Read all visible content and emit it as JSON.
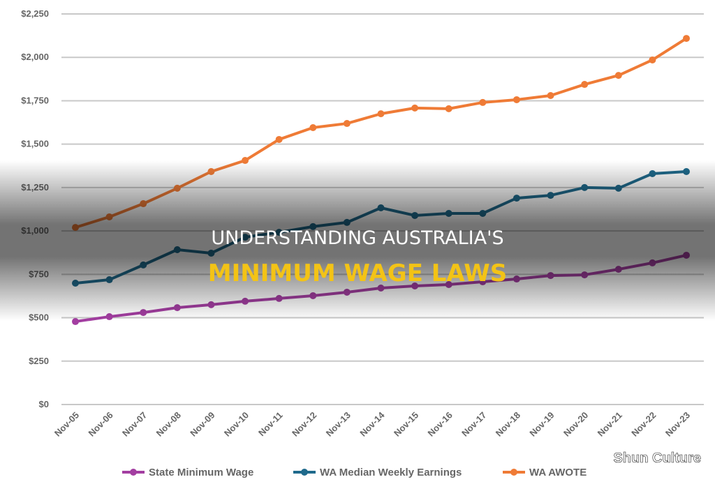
{
  "title_lines": [
    "UNDERSTANDING AUSTRALIA'S",
    "MINIMUM WAGE LAWS"
  ],
  "watermark": "Shun Culture",
  "chart_data": {
    "type": "line",
    "categories": [
      "Nov-05",
      "Nov-06",
      "Nov-07",
      "Nov-08",
      "Nov-09",
      "Nov-10",
      "Nov-11",
      "Nov-12",
      "Nov-13",
      "Nov-14",
      "Nov-15",
      "Nov-16",
      "Nov-17",
      "Nov-18",
      "Nov-19",
      "Nov-20",
      "Nov-21",
      "Nov-22",
      "Nov-23"
    ],
    "series": [
      {
        "name": "State Minimum Wage",
        "color": "#a33ea1",
        "values": [
          478,
          506,
          530,
          558,
          575,
          595,
          611,
          627,
          647,
          671,
          683,
          691,
          707,
          723,
          743,
          747,
          779,
          816,
          860
        ]
      },
      {
        "name": "WA Median Weekly Earnings",
        "color": "#1f6a8c",
        "values": [
          699,
          719,
          804,
          892,
          872,
          964,
          992,
          1025,
          1049,
          1133,
          1089,
          1101,
          1101,
          1189,
          1205,
          1250,
          1246,
          1330,
          1342
        ]
      },
      {
        "name": "WA AWOTE",
        "color": "#ef7b36",
        "values": [
          1020,
          1081,
          1157,
          1246,
          1342,
          1406,
          1527,
          1595,
          1619,
          1675,
          1708,
          1704,
          1740,
          1756,
          1780,
          1844,
          1896,
          1985,
          2109
        ]
      }
    ],
    "ylim": [
      0,
      2250
    ],
    "yticks": [
      {
        "value": 0,
        "label": "$0"
      },
      {
        "value": 250,
        "label": "$250"
      },
      {
        "value": 500,
        "label": "$500"
      },
      {
        "value": 750,
        "label": "$750"
      },
      {
        "value": 1000,
        "label": "$1,000"
      },
      {
        "value": 1250,
        "label": "$1,250"
      },
      {
        "value": 1500,
        "label": "$1,500"
      },
      {
        "value": 1750,
        "label": "$1,750"
      },
      {
        "value": 2000,
        "label": "$2,000"
      },
      {
        "value": 2250,
        "label": "$2,250"
      }
    ],
    "grid": true
  }
}
